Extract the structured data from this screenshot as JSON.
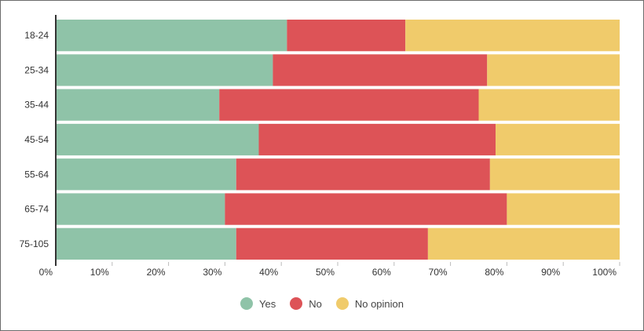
{
  "chart_data": {
    "type": "bar",
    "orientation": "horizontal",
    "stacked": true,
    "normalized": true,
    "categories": [
      "18-24",
      "25-34",
      "35-44",
      "45-54",
      "55-64",
      "65-74",
      "75-105"
    ],
    "series": [
      {
        "name": "Yes",
        "color": "#8fc3a8",
        "values": [
          41,
          38.5,
          29,
          36,
          32,
          30,
          32
        ]
      },
      {
        "name": "No",
        "color": "#dd5357",
        "values": [
          21,
          38,
          46,
          42,
          45,
          50,
          34
        ]
      },
      {
        "name": "No opinion",
        "color": "#f0cb6b",
        "values": [
          38,
          23.5,
          25,
          22,
          23,
          20,
          34
        ]
      }
    ],
    "x_ticks": [
      "0%",
      "10%",
      "20%",
      "30%",
      "40%",
      "50%",
      "60%",
      "70%",
      "80%",
      "90%",
      "100%"
    ],
    "xlim": [
      0,
      100
    ],
    "grid": false,
    "legend_position": "bottom"
  }
}
